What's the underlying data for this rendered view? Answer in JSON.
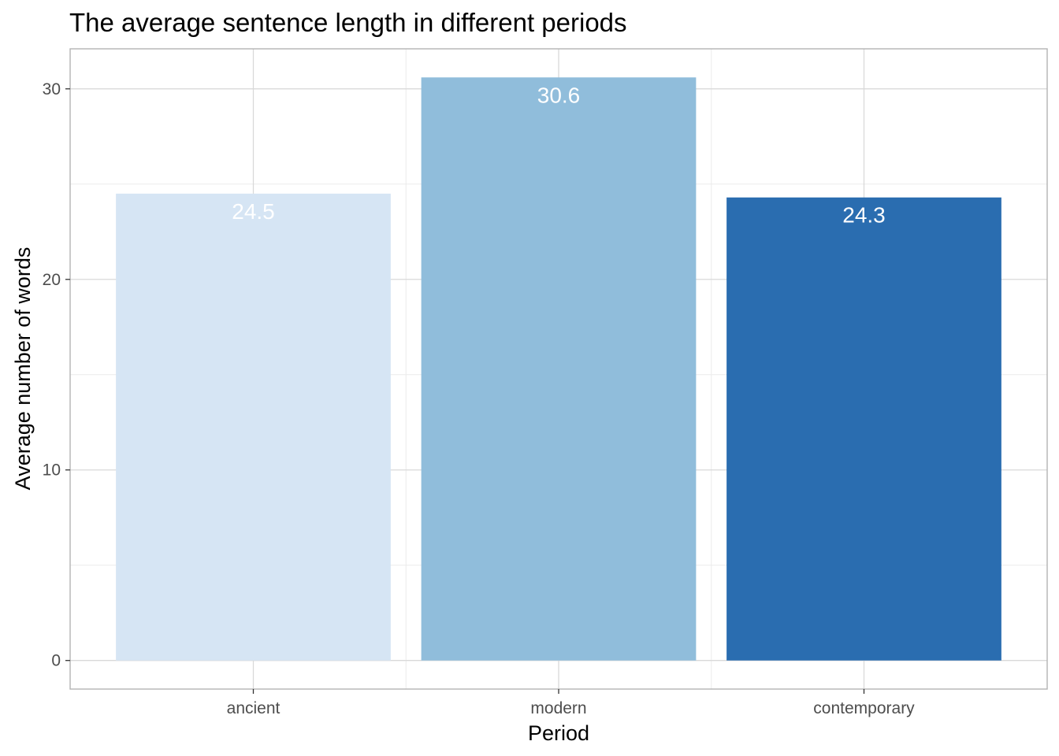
{
  "chart_data": {
    "type": "bar",
    "title": "The average sentence length in different periods",
    "xlabel": "Period",
    "ylabel": "Average number of words",
    "categories": [
      "ancient",
      "modern",
      "contemporary"
    ],
    "values": [
      24.5,
      30.6,
      24.3
    ],
    "value_labels": [
      "24.5",
      "30.6",
      "24.3"
    ],
    "bar_colors": [
      "#d6e5f4",
      "#90bddb",
      "#2a6db0"
    ],
    "ylim": [
      -1.5,
      32.1
    ],
    "yticks": [
      0,
      10,
      20,
      30
    ],
    "ytick_labels": [
      "0",
      "10",
      "20",
      "30"
    ],
    "grid": true,
    "legend": "none",
    "colors": {
      "panel_border": "#b3b3b3",
      "grid_major": "#d9d9d9",
      "grid_minor": "#ebebeb",
      "tick_text": "#4d4d4d"
    }
  }
}
